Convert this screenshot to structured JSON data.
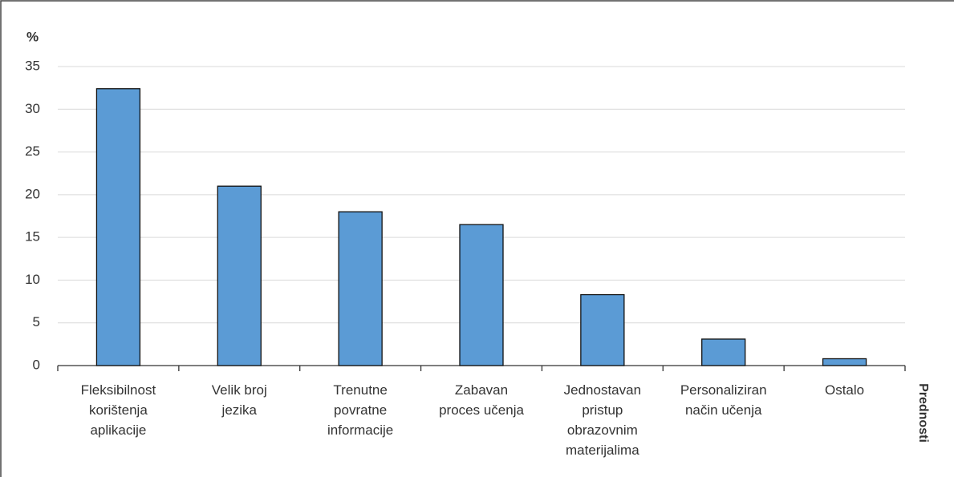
{
  "chart_data": {
    "type": "bar",
    "y_label": "%",
    "x_label": "Prednosti",
    "categories": [
      "Fleksibilnost\nkorištenja\naplikacije",
      "Velik broj\njezika",
      "Trenutne\npovratne\ninformacije",
      "Zabavan\nproces učenja",
      "Jednostavan\npristup\nobrazovnim\nmaterijalima",
      "Personaliziran\nnačin učenja",
      "Ostalo"
    ],
    "values": [
      32.4,
      21,
      18,
      16.5,
      8.3,
      3.1,
      0.8
    ],
    "color": "#5b9bd5",
    "ylim": [
      0,
      35
    ],
    "yticks": [
      0,
      5,
      10,
      15,
      20,
      25,
      30,
      35
    ],
    "grid": true
  }
}
